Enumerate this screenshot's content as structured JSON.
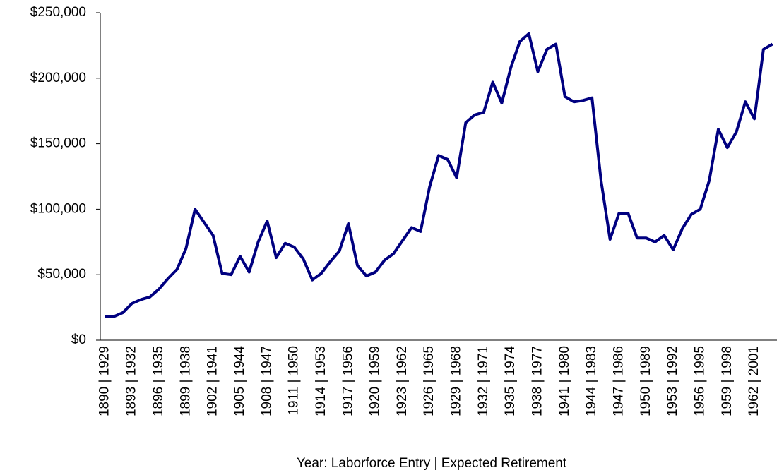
{
  "chart_data": {
    "type": "line",
    "x_label": "Year: Laborforce Entry | Expected Retirement",
    "categories": [
      "1890 | 1929",
      null,
      null,
      "1893 | 1932",
      null,
      null,
      "1896 | 1935",
      null,
      null,
      "1899 | 1938",
      null,
      null,
      "1902 | 1941",
      null,
      null,
      "1905 | 1944",
      null,
      null,
      "1908 | 1947",
      null,
      null,
      "1911 | 1950",
      null,
      null,
      "1914 | 1953",
      null,
      null,
      "1917 | 1956",
      null,
      null,
      "1920 | 1959",
      null,
      null,
      "1923 | 1962",
      null,
      null,
      "1926 | 1965",
      null,
      null,
      "1929 | 1968",
      null,
      null,
      "1932 | 1971",
      null,
      null,
      "1935 | 1974",
      null,
      null,
      "1938 | 1977",
      null,
      null,
      "1941 | 1980",
      null,
      null,
      "1944 | 1983",
      null,
      null,
      "1947 | 1986",
      null,
      null,
      "1950 | 1989",
      null,
      null,
      "1953 | 1992",
      null,
      null,
      "1956 | 1995",
      null,
      null,
      "1959 | 1998",
      null,
      null,
      "1962 | 2001",
      null,
      null
    ],
    "series": [
      {
        "color": "#000080",
        "values": [
          18000,
          18000,
          21000,
          28000,
          31000,
          33000,
          39000,
          47000,
          54000,
          70000,
          100000,
          90000,
          80000,
          51000,
          50000,
          64000,
          52000,
          75000,
          91000,
          63000,
          74000,
          71000,
          62000,
          46000,
          51000,
          60000,
          68000,
          89000,
          57000,
          49000,
          52000,
          61000,
          66000,
          76000,
          86000,
          83000,
          117000,
          141000,
          138000,
          124000,
          166000,
          172000,
          174000,
          197000,
          181000,
          208000,
          228000,
          234000,
          205000,
          222000,
          226000,
          186000,
          182000,
          183000,
          185000,
          122000,
          77000,
          97000,
          97000,
          78000,
          78000,
          75000,
          80000,
          69000,
          85000,
          96000,
          100000,
          122000,
          161000,
          147000,
          159000,
          182000,
          169000,
          222000,
          226000
        ]
      }
    ],
    "ylim": [
      0,
      250000
    ],
    "yticks": [
      {
        "value": 0,
        "label": "$0"
      },
      {
        "value": 50000,
        "label": "$50,000"
      },
      {
        "value": 100000,
        "label": "$100,000"
      },
      {
        "value": 150000,
        "label": "$150,000"
      },
      {
        "value": 200000,
        "label": "$200,000"
      },
      {
        "value": 250000,
        "label": "$250,000"
      }
    ],
    "grid": false
  }
}
